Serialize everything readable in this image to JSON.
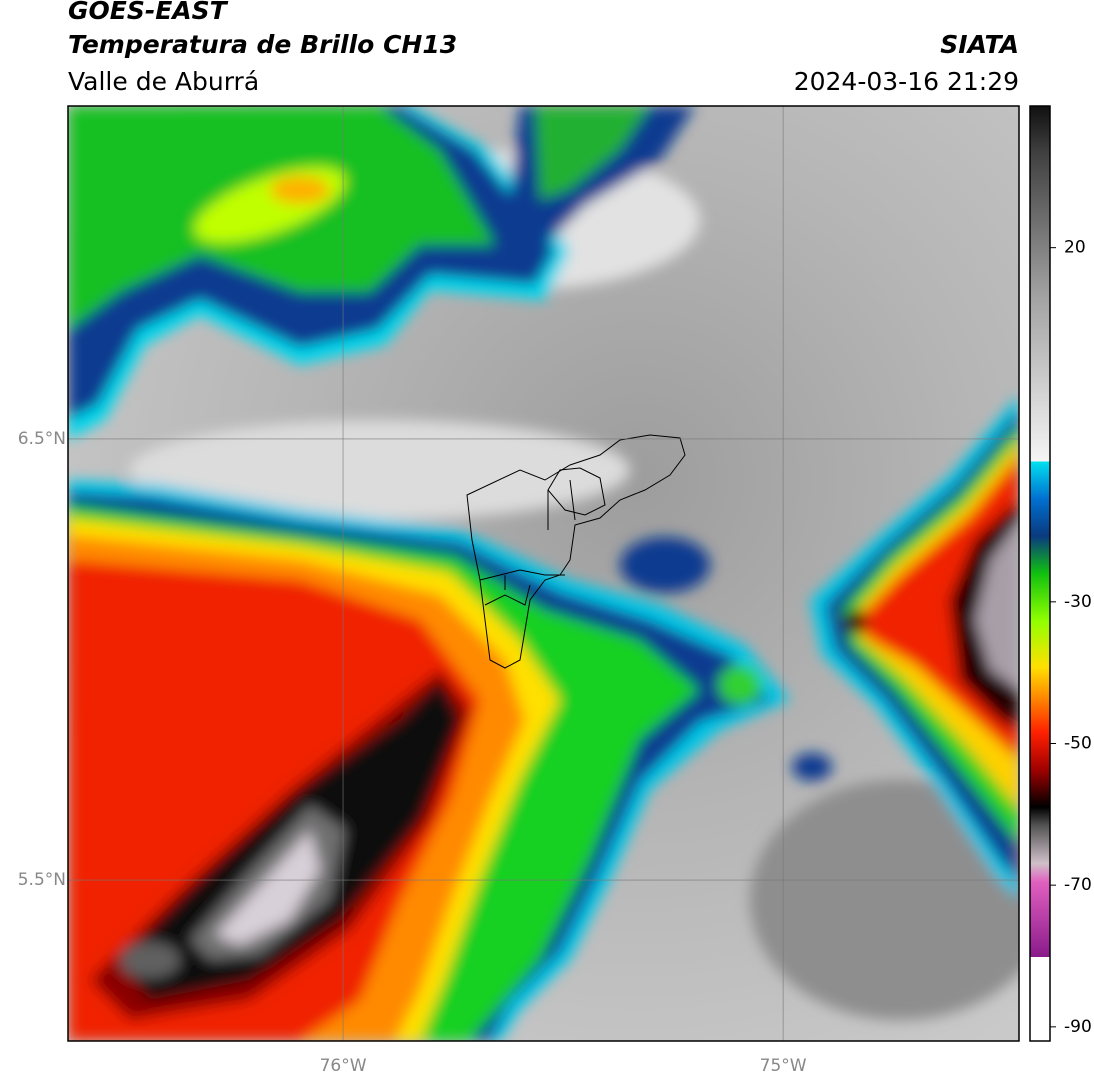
{
  "header": {
    "title": "GOES-EAST",
    "subtitle": "Temperatura de Brillo CH13",
    "region": "Valle de Aburrá",
    "source": "SIATA",
    "datetime": "2024-03-16 21:29"
  },
  "map": {
    "xlim": [
      -76.625,
      -74.464
    ],
    "ylim": [
      5.135,
      7.255
    ],
    "xticks": [
      {
        "value": -76,
        "label": "76°W"
      },
      {
        "value": -75,
        "label": "75°W"
      }
    ],
    "yticks": [
      {
        "value": 6.5,
        "label": "6.5°N"
      },
      {
        "value": 5.5,
        "label": "5.5°N"
      }
    ],
    "grid": true
  },
  "colorbar": {
    "lim": [
      -92,
      40
    ],
    "ticks": [
      20,
      -30,
      -50,
      -70,
      -90
    ]
  }
}
